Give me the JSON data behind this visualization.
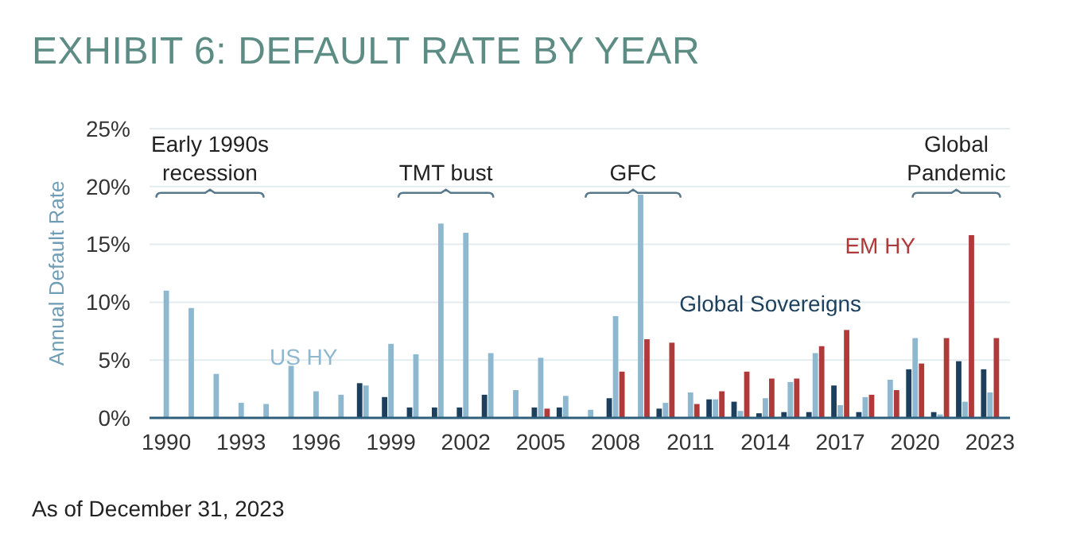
{
  "chart_data": {
    "type": "bar",
    "title": "EXHIBIT 6: DEFAULT RATE BY YEAR",
    "ylabel": "Annual Default Rate",
    "x": [
      1990,
      1991,
      1992,
      1993,
      1994,
      1995,
      1996,
      1997,
      1998,
      1999,
      2000,
      2001,
      2002,
      2003,
      2004,
      2005,
      2006,
      2007,
      2008,
      2009,
      2010,
      2011,
      2012,
      2013,
      2014,
      2015,
      2016,
      2017,
      2018,
      2019,
      2020,
      2021,
      2022,
      2023
    ],
    "series": [
      {
        "name": "Global Sovereigns",
        "color": "#1b3f5c",
        "values": [
          null,
          null,
          null,
          null,
          null,
          null,
          null,
          null,
          3.0,
          1.8,
          0.9,
          0.9,
          0.9,
          2.0,
          null,
          0.9,
          0.9,
          null,
          1.7,
          null,
          0.8,
          null,
          1.6,
          1.4,
          0.4,
          0.5,
          0.5,
          2.8,
          0.5,
          null,
          4.2,
          0.5,
          4.9,
          4.2
        ]
      },
      {
        "name": "US HY",
        "color": "#8db8d0",
        "values": [
          11.0,
          9.5,
          3.8,
          1.3,
          1.2,
          4.5,
          2.3,
          2.0,
          2.8,
          6.4,
          5.5,
          16.8,
          16.0,
          5.6,
          2.4,
          5.2,
          1.9,
          0.7,
          8.8,
          19.3,
          1.3,
          2.2,
          1.6,
          0.6,
          1.7,
          3.1,
          5.6,
          1.1,
          1.8,
          3.3,
          6.9,
          0.3,
          1.4,
          2.2
        ]
      },
      {
        "name": "EM HY",
        "color": "#b03a3a",
        "values": [
          null,
          null,
          null,
          null,
          null,
          null,
          null,
          null,
          null,
          null,
          null,
          null,
          null,
          null,
          null,
          0.8,
          null,
          null,
          4.0,
          6.8,
          6.5,
          1.2,
          2.3,
          4.0,
          3.4,
          3.4,
          6.2,
          7.6,
          2.0,
          2.4,
          4.7,
          6.9,
          15.8,
          6.9
        ]
      }
    ],
    "xlim": [
      1989.2,
      2023.8
    ],
    "xticks": [
      1990,
      1993,
      1996,
      1999,
      2002,
      2005,
      2008,
      2011,
      2014,
      2017,
      2020,
      2023
    ],
    "ylim": [
      0,
      25
    ],
    "yticks": [
      {
        "value": 0,
        "label": "0%"
      },
      {
        "value": 5,
        "label": "5%"
      },
      {
        "value": 10,
        "label": "10%"
      },
      {
        "value": 15,
        "label": "15%"
      },
      {
        "value": 20,
        "label": "20%"
      },
      {
        "value": 25,
        "label": "25%"
      }
    ],
    "grid": "y",
    "annotations": [
      "Early 1990s recession",
      "TMT bust",
      "GFC",
      "Global Pandemic",
      "As of December 31, 2023"
    ]
  }
}
